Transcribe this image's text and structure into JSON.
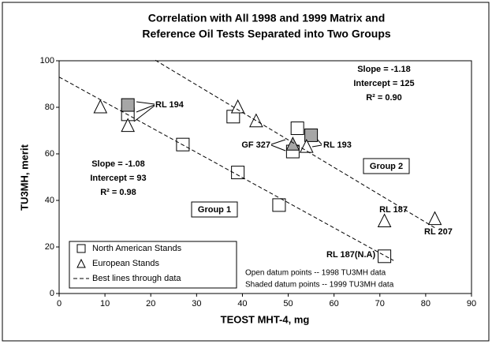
{
  "chart_data": {
    "type": "scatter",
    "title": [
      "Correlation with All 1998 and 1999 Matrix and",
      "Reference Oil Tests Separated into Two Groups"
    ],
    "x_label": "TEOST MHT-4, mg",
    "y_label": "TU3MH, merit",
    "xlim": [
      0,
      90
    ],
    "xticks": [
      0,
      10,
      20,
      30,
      40,
      50,
      60,
      70,
      80,
      90
    ],
    "ylim": [
      0,
      100
    ],
    "yticks": [
      0,
      20,
      40,
      60,
      80,
      100
    ],
    "grid": false,
    "series": [
      {
        "name": "North American Stands",
        "marker": "square",
        "color": "#000000",
        "x": [
          15,
          15,
          27,
          38,
          39,
          48,
          51,
          52,
          55,
          71
        ],
        "values": [
          77,
          81,
          64,
          76,
          52,
          38,
          61,
          71,
          68,
          16
        ],
        "shaded": [
          false,
          true,
          false,
          false,
          false,
          false,
          false,
          false,
          true,
          false
        ]
      },
      {
        "name": "European Stands",
        "marker": "triangle",
        "color": "#000000",
        "x": [
          9,
          15,
          39,
          43,
          51,
          54,
          71,
          82
        ],
        "values": [
          80,
          72,
          80,
          74,
          64,
          63,
          31,
          32
        ],
        "shaded": [
          false,
          false,
          false,
          false,
          true,
          false,
          false,
          false
        ]
      },
      {
        "name": "Best lines through data",
        "marker": "dashed-line",
        "color": "#000000",
        "lines": [
          {
            "slope": -1.08,
            "intercept": 93,
            "xrange": [
              0,
              73
            ]
          },
          {
            "slope": -1.18,
            "intercept": 125,
            "xrange": [
              21,
              82
            ]
          }
        ]
      }
    ],
    "legend": "lower-left",
    "shade_color": "#a6a6a6",
    "annotations": [
      "Slope = -1.18",
      "Intercept = 125",
      "R² = 0.90",
      "Slope = -1.08",
      "Intercept = 93",
      "R² = 0.98",
      "Group 2",
      "Group 1",
      "RL 194",
      "GF 327",
      "RL 193",
      "RL 187",
      "RL 207",
      "RL 187(N.A)",
      "Open datum points -- 1998 TU3MH data",
      "Shaded datum points -- 1999 TU3MH data"
    ]
  }
}
